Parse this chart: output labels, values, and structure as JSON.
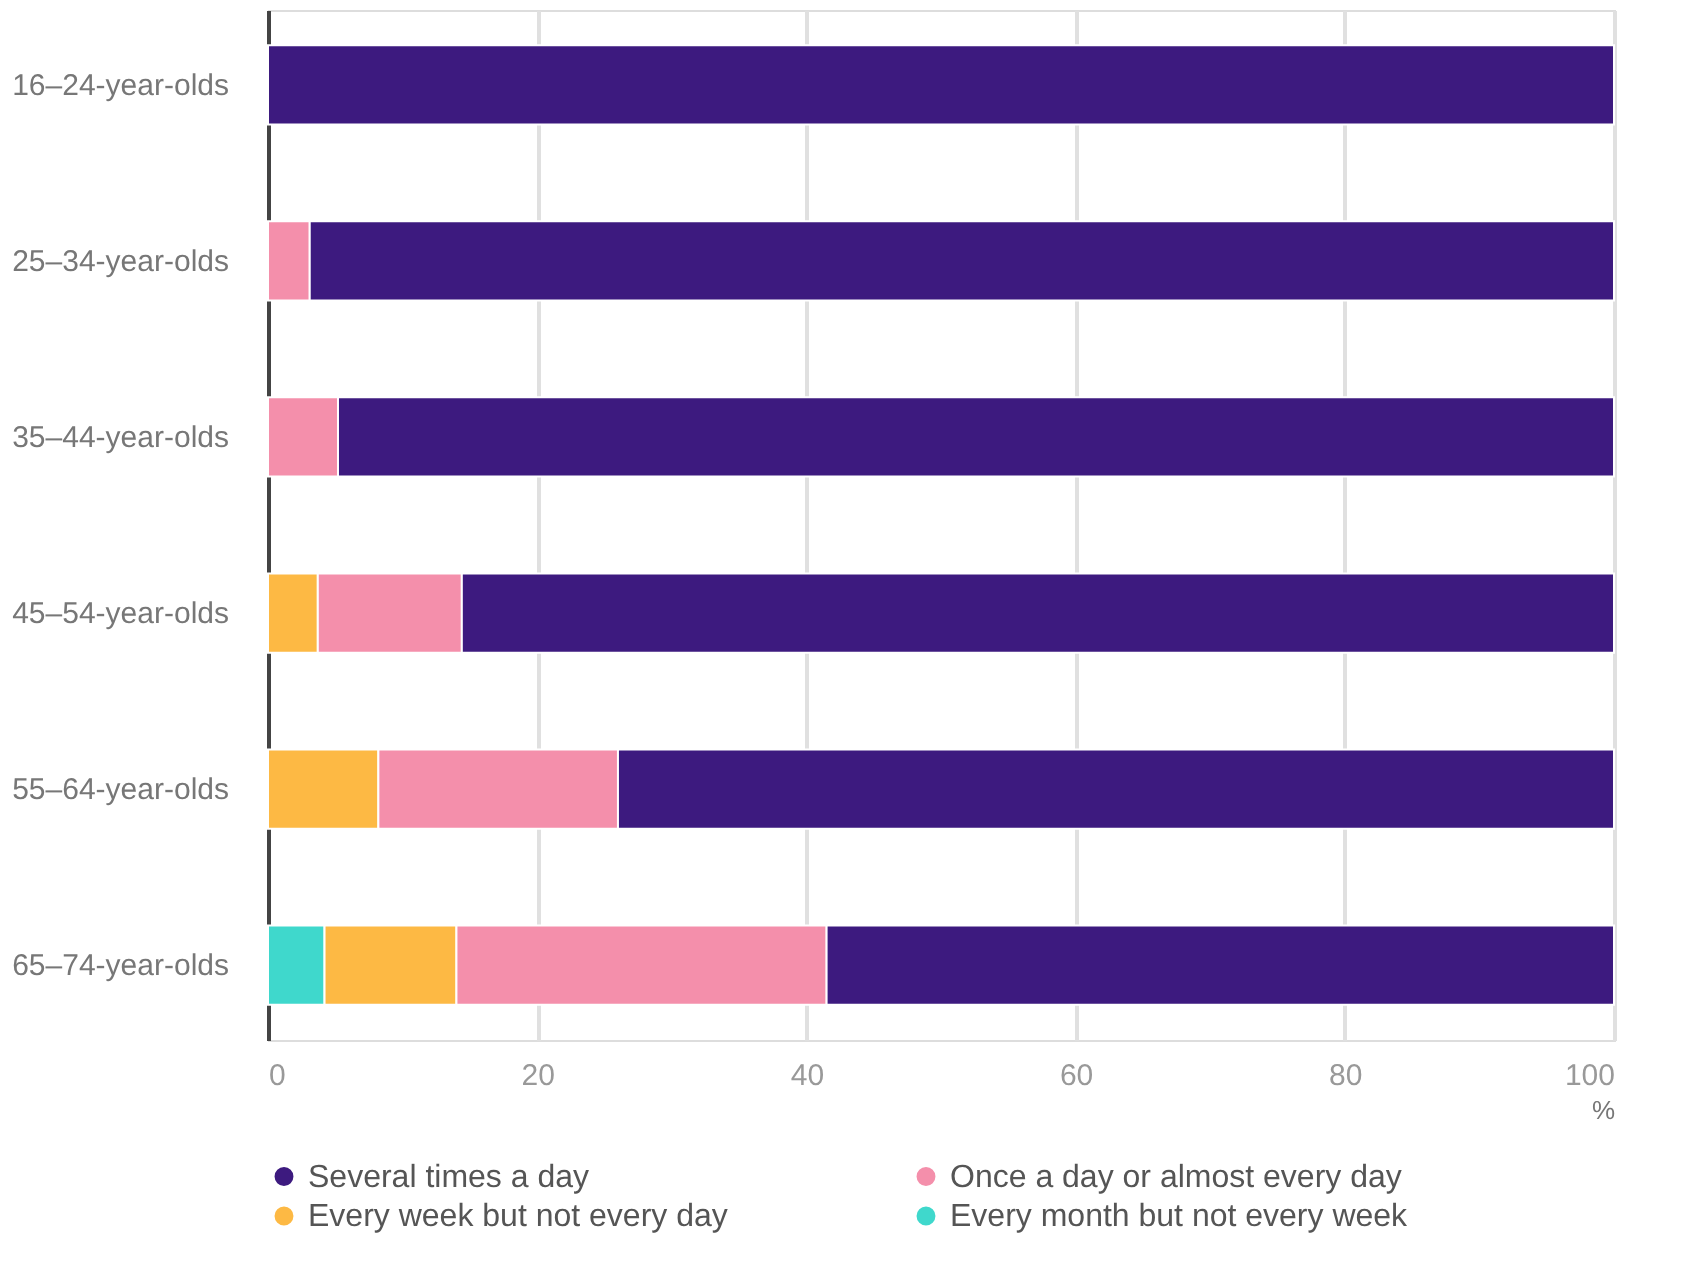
{
  "chart_data": {
    "type": "bar",
    "orientation": "horizontal",
    "stacked": true,
    "xlabel": "%",
    "categories": [
      "16–24-year-olds",
      "25–34-year-olds",
      "35–44-year-olds",
      "45–54-year-olds",
      "55–64-year-olds",
      "65–74-year-olds"
    ],
    "series": [
      {
        "name": "Every month but not every week",
        "color": "#3fd8cc",
        "values": [
          null,
          null,
          null,
          null,
          null,
          4.2
        ]
      },
      {
        "name": "Every week but not every day",
        "color": "#fdb944",
        "values": [
          null,
          null,
          null,
          3.7,
          8.2,
          9.8
        ]
      },
      {
        "name": "Once a day or almost every day",
        "color": "#f48fab",
        "values": [
          null,
          3.1,
          5.2,
          10.7,
          17.8,
          27.5
        ]
      },
      {
        "name": "Several times a day",
        "color": "#3d1a7f",
        "values": [
          100,
          96.9,
          94.8,
          85.6,
          74.0,
          58.5
        ]
      }
    ],
    "xlim": [
      0,
      100
    ],
    "xticks": [
      0,
      20,
      40,
      60,
      80,
      100
    ],
    "grid": "x",
    "legend": "bottom"
  }
}
